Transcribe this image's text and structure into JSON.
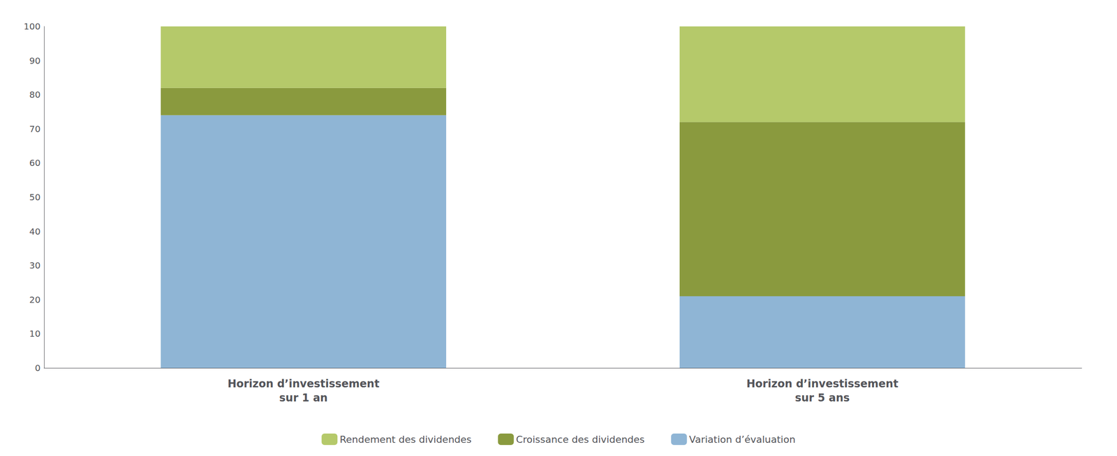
{
  "chart_data": {
    "type": "bar",
    "stacked": true,
    "categories": [
      "Horizon d’investissement\nsur 1 an",
      "Horizon d’investissement\nsur 5 ans"
    ],
    "series": [
      {
        "name": "Variation d’évaluation",
        "color": "#8fb5d5",
        "values": [
          74,
          21
        ]
      },
      {
        "name": "Croissance des dividendes",
        "color": "#8a9a3e",
        "values": [
          8,
          51
        ]
      },
      {
        "name": "Rendement des dividendes",
        "color": "#b5c96a",
        "values": [
          18,
          28
        ]
      }
    ],
    "ylim": [
      0,
      100
    ],
    "yticks": [
      0,
      10,
      20,
      30,
      40,
      50,
      60,
      70,
      80,
      90,
      100
    ],
    "grid": false,
    "legend": "bottom"
  }
}
